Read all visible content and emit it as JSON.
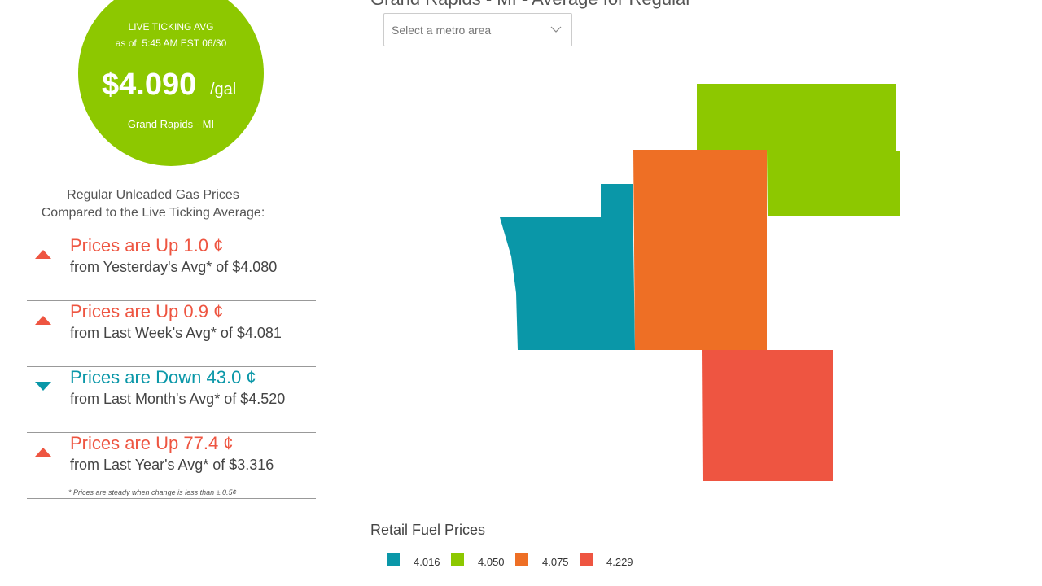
{
  "header": {
    "title": "Grand Rapids - MI - Average for Regular"
  },
  "badge": {
    "heading": "LIVE TICKING AVG",
    "as_of": "as of  5:45 AM EST 06/30",
    "price": "$4.090",
    "unit": "/gal",
    "location": "Grand Rapids - MI"
  },
  "metro_select": {
    "placeholder": "Select a metro area"
  },
  "comparison": {
    "heading": [
      "Regular Unleaded Gas Prices",
      "Compared to the Live Ticking Average:"
    ],
    "items": [
      {
        "direction": "up",
        "change": "Prices are Up 1.0 ¢",
        "reference": "from Yesterday's Avg* of $4.080"
      },
      {
        "direction": "up",
        "change": "Prices are Up 0.9 ¢",
        "reference": "from Last Week's Avg* of $4.081"
      },
      {
        "direction": "down",
        "change": "Prices are Down 43.0 ¢",
        "reference": "from Last Month's Avg* of $4.520"
      },
      {
        "direction": "up",
        "change": "Prices are Up 77.4 ¢",
        "reference": "from Last Year's Avg* of $3.316"
      }
    ],
    "footnote": "* Prices are steady when change is less than ± 0.5¢"
  },
  "map": {
    "title": "Retail Fuel Prices",
    "legend": [
      {
        "label": "4.016",
        "color": "#0a97a8"
      },
      {
        "label": "4.050",
        "color": "#8dc800"
      },
      {
        "label": "4.075",
        "color": "#ee6f25"
      },
      {
        "label": "4.229",
        "color": "#ee5541"
      }
    ]
  }
}
